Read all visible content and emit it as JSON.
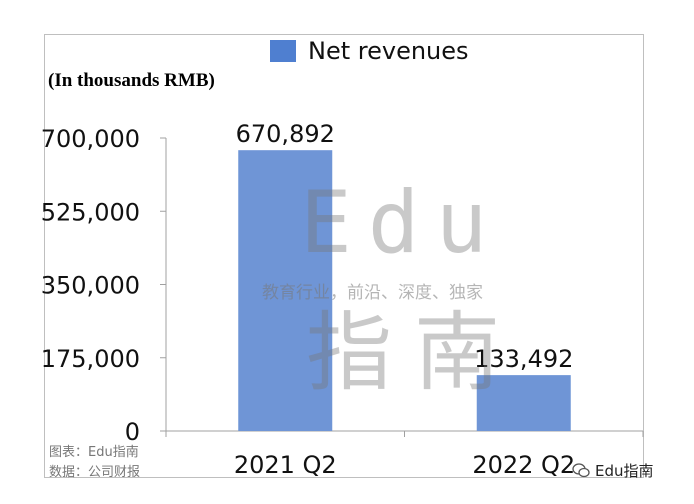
{
  "chart_data": {
    "type": "bar",
    "categories": [
      "2021 Q2",
      "2022 Q2"
    ],
    "series": [
      {
        "name": "Net revenues",
        "values": [
          670892,
          133492
        ]
      }
    ],
    "data_labels": [
      "670,892",
      "133,492"
    ],
    "ylabel": "(In thousands RMB)",
    "yticks": [
      0,
      175000,
      350000,
      525000,
      700000
    ],
    "ytick_labels": [
      "0",
      "175,000",
      "350,000",
      "525,000",
      "700,000"
    ],
    "ylim": [
      0,
      700000
    ],
    "grid": false,
    "legend_position": "top",
    "bar_color": "#6f95d6"
  },
  "legend": {
    "label": "Net revenues",
    "color": "#4f7fd0"
  },
  "credits": {
    "chart": "图表：Edu指南",
    "data": "数据：公司财报"
  },
  "watermark": {
    "latin": "Edu",
    "tagline": "教育行业，前沿、深度、独家",
    "chinese": "指南"
  },
  "brand": {
    "label": "Edu指南",
    "icon": "wechat-icon"
  }
}
